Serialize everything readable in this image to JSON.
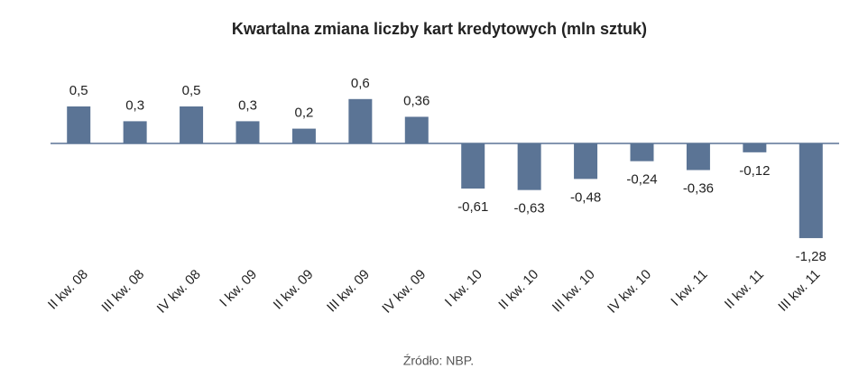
{
  "chart_data": {
    "type": "bar",
    "title": "Kwartalna zmiana liczby kart kredytowych (mln sztuk)",
    "categories": [
      "II kw. 08",
      "III kw. 08",
      "IV kw. 08",
      "I kw. 09",
      "II kw. 09",
      "III kw. 09",
      "IV kw. 09",
      "I kw. 10",
      "II kw. 10",
      "III kw. 10",
      "IV kw. 10",
      "I kw. 11",
      "II kw. 11",
      "III kw. 11"
    ],
    "values": [
      0.5,
      0.3,
      0.5,
      0.3,
      0.2,
      0.6,
      0.36,
      -0.61,
      -0.63,
      -0.48,
      -0.24,
      -0.36,
      -0.12,
      -1.28
    ],
    "value_labels": [
      "0,5",
      "0,3",
      "0,5",
      "0,3",
      "0,2",
      "0,6",
      "0,36",
      "-0,61",
      "-0,63",
      "-0,48",
      "-0,24",
      "-0,36",
      "-0,12",
      "-1,28"
    ],
    "color": "#5b7495",
    "source": "Źródło: NBP."
  }
}
